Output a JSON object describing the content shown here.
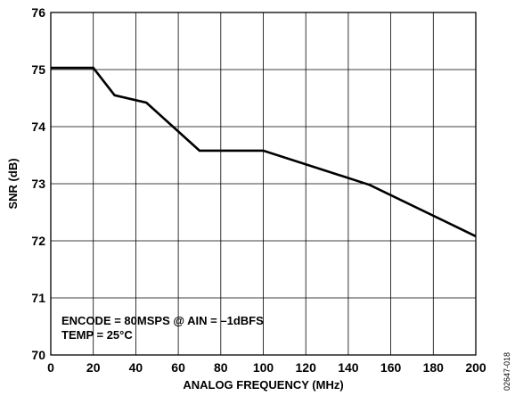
{
  "chart_data": {
    "type": "line",
    "xlabel": "ANALOG FREQUENCY (MHz)",
    "ylabel": "SNR (dB)",
    "xlim": [
      0,
      200
    ],
    "ylim": [
      70,
      76
    ],
    "x_ticks": [
      0,
      20,
      40,
      60,
      80,
      100,
      120,
      140,
      160,
      180,
      200
    ],
    "y_ticks": [
      70,
      71,
      72,
      73,
      74,
      75,
      76
    ],
    "grid": true,
    "legend": "none",
    "series": [
      {
        "x": [
          0,
          20,
          30,
          45,
          70,
          100,
          150,
          200
        ],
        "y": [
          75.03,
          75.03,
          74.55,
          74.42,
          73.58,
          73.58,
          72.98,
          72.08
        ]
      }
    ],
    "annotations": [
      "ENCODE = 80MSPS @ AIN = –1dBFS",
      "TEMP = 25°C"
    ],
    "figure_id": "02647-018"
  }
}
